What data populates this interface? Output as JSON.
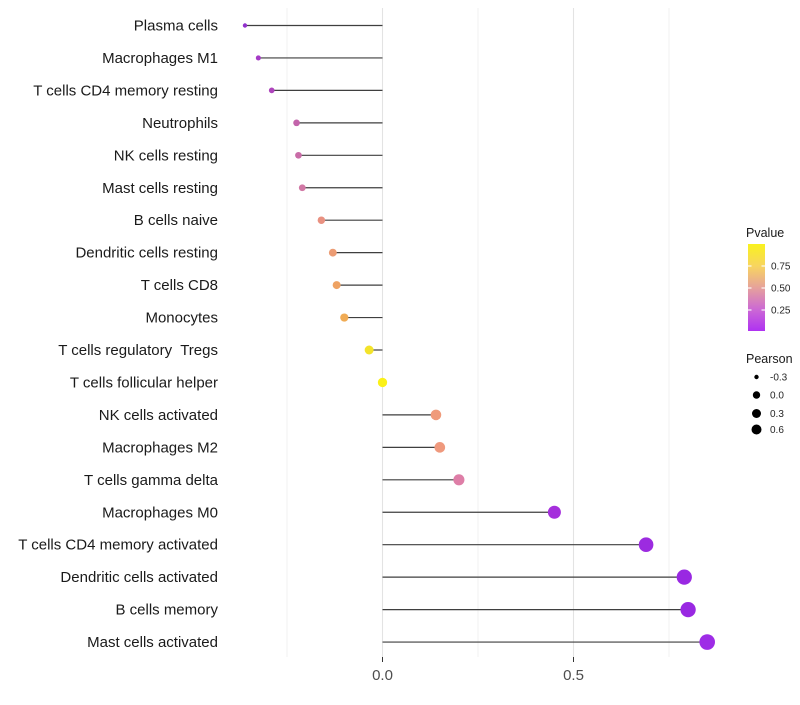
{
  "chart_data": {
    "type": "lollipop",
    "title": "",
    "xlabel": "",
    "ylabel": "",
    "x_axis": {
      "major_ticks": [
        {
          "value": 0.0,
          "label": "0.0"
        },
        {
          "value": 0.5,
          "label": "0.5"
        }
      ],
      "minor_ticks": [
        -0.25,
        0.25,
        0.75
      ],
      "range": [
        -0.42,
        0.94
      ]
    },
    "rows": [
      {
        "label": "Plasma cells",
        "pearson": -0.36,
        "color": "#9130CC"
      },
      {
        "label": "Macrophages M1",
        "pearson": -0.325,
        "color": "#A53AC6"
      },
      {
        "label": "T cells CD4 memory resting",
        "pearson": -0.29,
        "color": "#AE44BC"
      },
      {
        "label": "Neutrophils",
        "pearson": -0.225,
        "color": "#C364AB"
      },
      {
        "label": "NK cells resting",
        "pearson": -0.22,
        "color": "#C96CA7"
      },
      {
        "label": "Mast cells resting",
        "pearson": -0.21,
        "color": "#D178A5"
      },
      {
        "label": "B cells naive",
        "pearson": -0.16,
        "color": "#E99181"
      },
      {
        "label": "Dendritic cells resting",
        "pearson": -0.13,
        "color": "#EC9C74"
      },
      {
        "label": "T cells CD8",
        "pearson": -0.12,
        "color": "#EEA263"
      },
      {
        "label": "Monocytes",
        "pearson": -0.1,
        "color": "#F0AB54"
      },
      {
        "label": "T cells regulatory  Tregs",
        "pearson": -0.035,
        "color": "#F3E32A"
      },
      {
        "label": "T cells follicular helper",
        "pearson": 0.0,
        "color": "#FBF118"
      },
      {
        "label": "NK cells activated",
        "pearson": 0.14,
        "color": "#EF9B7B"
      },
      {
        "label": "Macrophages M2",
        "pearson": 0.15,
        "color": "#EF997D"
      },
      {
        "label": "T cells gamma delta",
        "pearson": 0.2,
        "color": "#DE7EA7"
      },
      {
        "label": "Macrophages M0",
        "pearson": 0.45,
        "color": "#A52FDC"
      },
      {
        "label": "T cells CD4 memory activated",
        "pearson": 0.69,
        "color": "#9C2BE0"
      },
      {
        "label": "Dendritic cells activated",
        "pearson": 0.79,
        "color": "#9928E2"
      },
      {
        "label": "B cells memory",
        "pearson": 0.8,
        "color": "#9928E2"
      },
      {
        "label": "Mast cells activated",
        "pearson": 0.85,
        "color": "#9E2CE6"
      }
    ],
    "size_scale": {
      "p_min": -0.36,
      "p_max": 0.85,
      "r_min": 2.2,
      "r_max": 7.8
    },
    "legend_pvalue": {
      "title": "Pvalue",
      "ticks": [
        {
          "label": "0.75",
          "value": 0.75
        },
        {
          "label": "0.50",
          "value": 0.5
        },
        {
          "label": "0.25",
          "value": 0.25
        }
      ],
      "gradient": [
        {
          "offset": 0,
          "color": "#F9F21E"
        },
        {
          "offset": 0.25,
          "color": "#F8D55F"
        },
        {
          "offset": 0.5,
          "color": "#E6A29B"
        },
        {
          "offset": 0.75,
          "color": "#CC69D4"
        },
        {
          "offset": 1,
          "color": "#AF32F2"
        }
      ]
    },
    "legend_pearson": {
      "title": "Pearson",
      "entries": [
        {
          "label": "-0.3",
          "r": 2.2
        },
        {
          "label": "0.0",
          "r": 3.7
        },
        {
          "label": "0.3",
          "r": 4.5
        },
        {
          "label": "0.6",
          "r": 5.0
        }
      ],
      "dot_color": "#000000"
    },
    "style": {
      "stem_color": "#3f3f3f",
      "major_grid_color": "#e3e3e3",
      "minor_grid_color": "#efefef",
      "tick_color": "#333333",
      "background": "#ffffff"
    }
  }
}
